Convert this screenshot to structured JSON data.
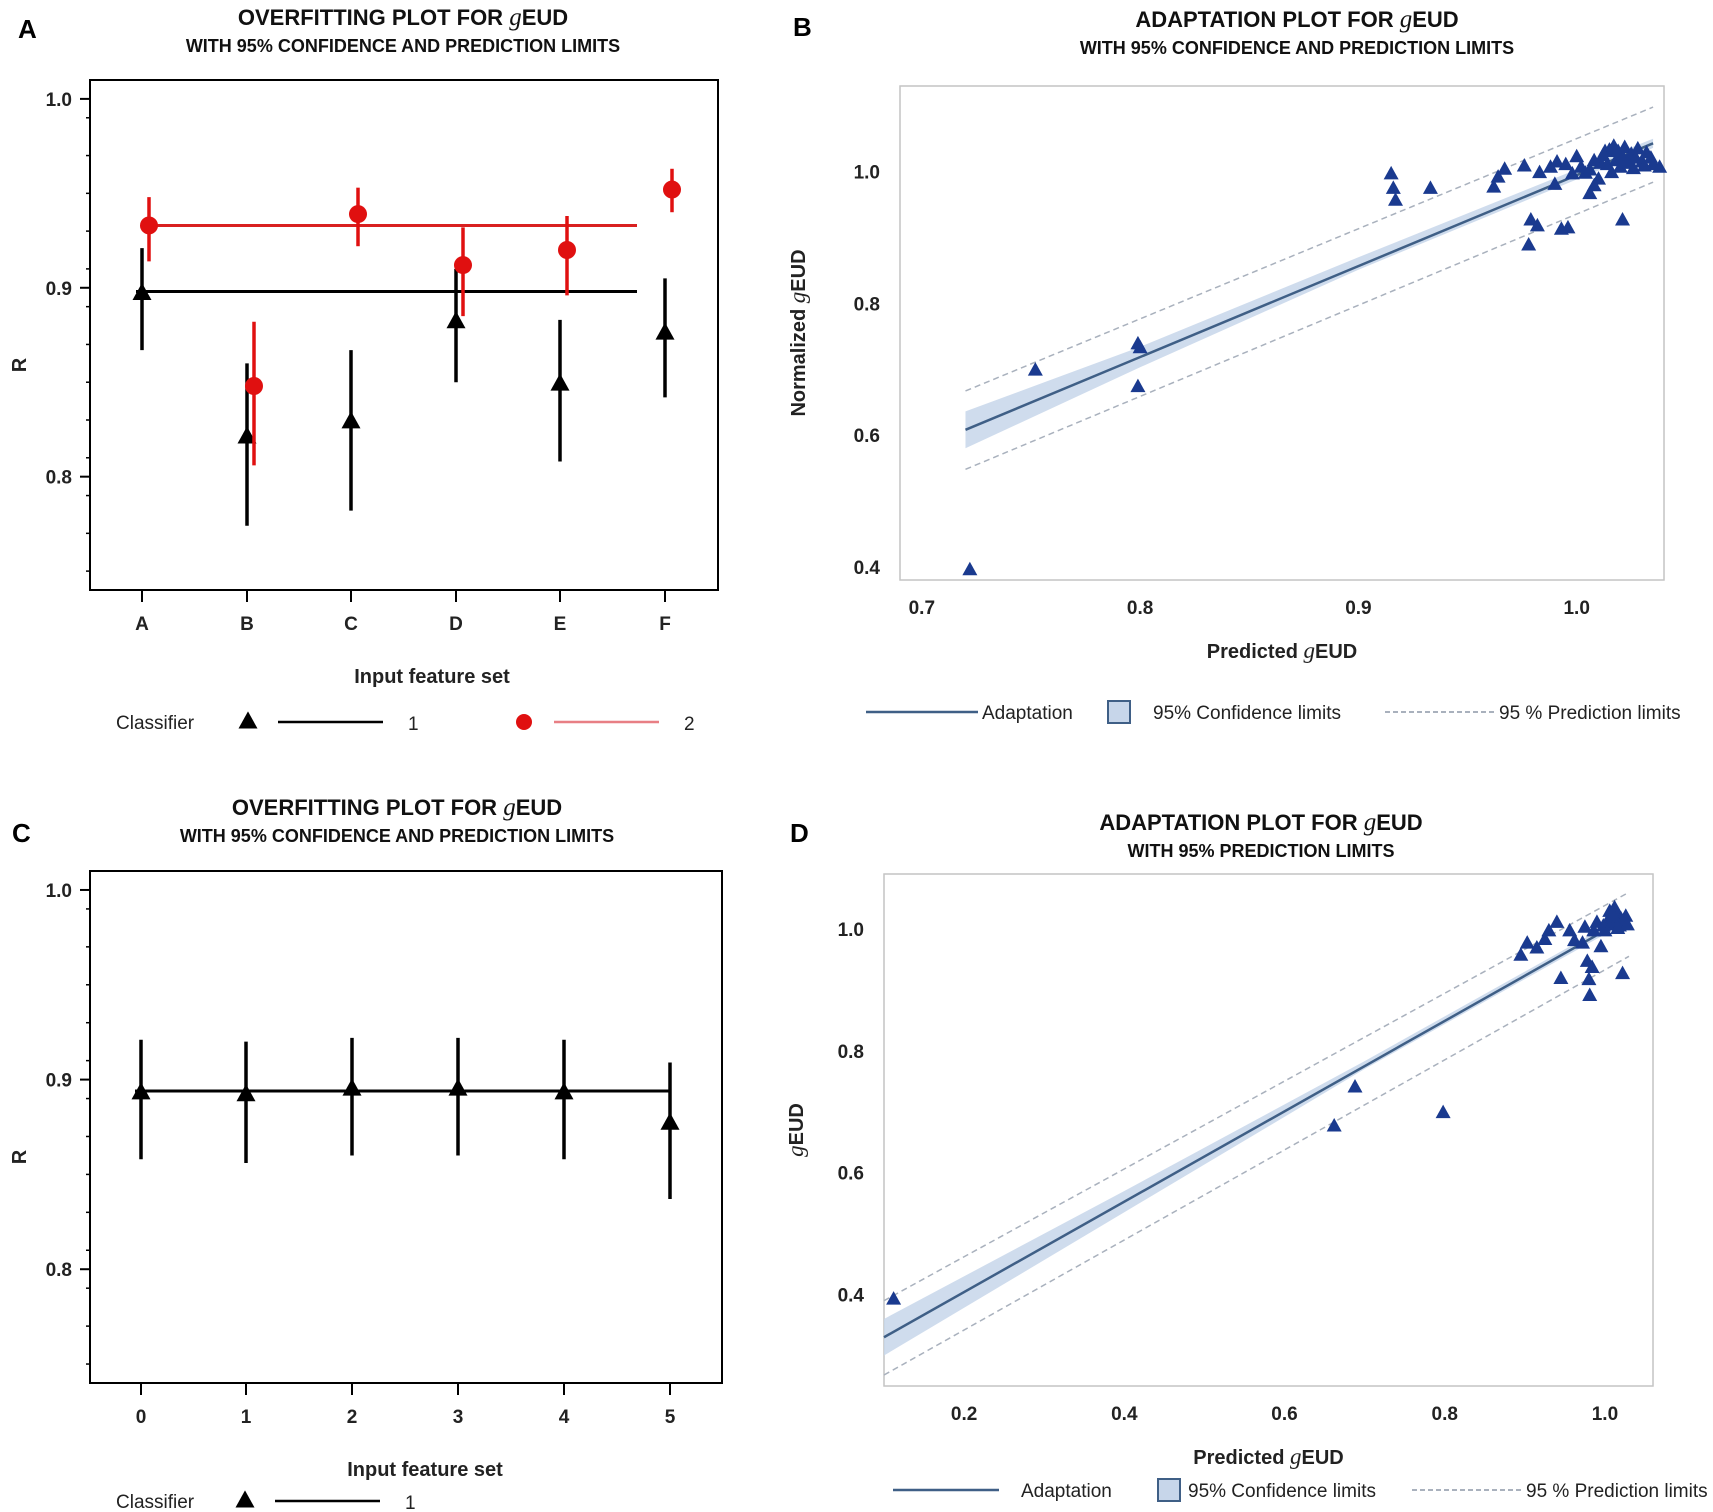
{
  "panels": [
    {
      "id": "A",
      "letter": "A",
      "title": [
        "OVERFITTING PLOT FOR ",
        "g",
        "EUD"
      ],
      "subtitle": "WITH 95% CONFIDENCE AND PREDICTION LIMITS",
      "xlabel": "Input feature set",
      "ylabel": "R",
      "legend": {
        "prefix": "Classifier",
        "items": [
          {
            "label": "1",
            "color": "#000000",
            "marker": "triangle"
          },
          {
            "label": "2",
            "color": "#e01010",
            "marker": "circle",
            "line_color": "#e87f84"
          }
        ]
      }
    },
    {
      "id": "B",
      "letter": "B",
      "title": [
        "ADAPTATION PLOT FOR ",
        "g",
        "EUD"
      ],
      "subtitle": "WITH 95% CONFIDENCE AND PREDICTION LIMITS",
      "xlabel": [
        "Predicted ",
        "g",
        "EUD"
      ],
      "ylabel": [
        "Normalized ",
        "g",
        "EUD"
      ],
      "legend": {
        "adaptation": "Adaptation",
        "confidence": "95% Confidence limits",
        "prediction": "95 % Prediction limits"
      }
    },
    {
      "id": "C",
      "letter": "C",
      "title": [
        "OVERFITTING PLOT FOR ",
        "g",
        "EUD"
      ],
      "subtitle": "WITH 95% CONFIDENCE AND PREDICTION LIMITS",
      "xlabel": "Input feature set",
      "ylabel": "R",
      "legend": {
        "prefix": "Classifier",
        "items": [
          {
            "label": "1",
            "color": "#000000",
            "marker": "triangle"
          }
        ]
      }
    },
    {
      "id": "D",
      "letter": "D",
      "title": [
        "ADAPTATION PLOT FOR ",
        "g",
        "EUD"
      ],
      "subtitle": "WITH 95% PREDICTION LIMITS",
      "xlabel": [
        "Predicted ",
        "g",
        "EUD"
      ],
      "ylabel": [
        "g",
        "EUD"
      ],
      "legend": {
        "adaptation": "Adaptation",
        "confidence": "95% Confidence limits",
        "prediction": "95 % Prediction limits"
      }
    }
  ],
  "colors": {
    "navy": "#1a3a8f",
    "line": "#3f5f86",
    "band": "#c7d6ea",
    "pred": "#a9b1bd",
    "red": "#e01010",
    "redline": "#d92020"
  },
  "chart_data": [
    {
      "panel": "A",
      "type": "scatter",
      "categories": [
        "A",
        "B",
        "C",
        "D",
        "E",
        "F"
      ],
      "ylim": [
        0.74,
        1.01
      ],
      "yticks": [
        "0.8",
        "0.9",
        "1.0"
      ],
      "yticks_values": [
        0.8,
        0.9,
        1.0
      ],
      "series": [
        {
          "name": "1",
          "marker": "triangle",
          "color": "#000000",
          "values": [
            0.897,
            0.821,
            0.829,
            0.882,
            0.849,
            0.876
          ],
          "lower": [
            0.867,
            0.774,
            0.782,
            0.85,
            0.808,
            0.842
          ],
          "upper": [
            0.921,
            0.86,
            0.867,
            0.91,
            0.883,
            0.905
          ],
          "mean": 0.898
        },
        {
          "name": "2",
          "marker": "circle",
          "color": "#e01010",
          "values": [
            0.933,
            0.848,
            0.939,
            0.912,
            0.92,
            0.952
          ],
          "lower": [
            0.914,
            0.806,
            0.922,
            0.885,
            0.896,
            0.94
          ],
          "upper": [
            0.948,
            0.882,
            0.953,
            0.932,
            0.938,
            0.963
          ],
          "mean": 0.933
        }
      ]
    },
    {
      "panel": "B",
      "type": "scatter",
      "xlim": [
        0.69,
        1.04
      ],
      "ylim": [
        0.38,
        1.13
      ],
      "xticks": [
        "0.7",
        "0.8",
        "0.9",
        "1.0"
      ],
      "xticks_values": [
        0.7,
        0.8,
        0.9,
        1.0
      ],
      "yticks": [
        "0.4",
        "0.6",
        "0.8",
        "1.0"
      ],
      "yticks_values": [
        0.4,
        0.6,
        0.8,
        1.0
      ],
      "fit": {
        "x": [
          0.72,
          1.035
        ],
        "y": [
          0.608,
          1.043
        ]
      },
      "confidence": {
        "x": [
          0.72,
          0.8,
          0.9,
          1.035
        ],
        "upper": [
          0.636,
          0.734,
          0.87,
          1.05
        ],
        "lower": [
          0.58,
          0.703,
          0.851,
          1.036
        ]
      },
      "prediction": {
        "x": [
          0.72,
          1.035
        ],
        "upper": [
          0.667,
          1.098
        ],
        "lower": [
          0.548,
          0.984
        ]
      },
      "points": [
        [
          0.722,
          0.395
        ],
        [
          0.752,
          0.698
        ],
        [
          0.799,
          0.738
        ],
        [
          0.8,
          0.732
        ],
        [
          0.799,
          0.673
        ],
        [
          0.915,
          0.996
        ],
        [
          0.916,
          0.974
        ],
        [
          0.917,
          0.956
        ],
        [
          0.933,
          0.974
        ],
        [
          0.962,
          0.976
        ],
        [
          0.964,
          0.991
        ],
        [
          0.967,
          1.003
        ],
        [
          0.976,
          1.008
        ],
        [
          0.978,
          0.888
        ],
        [
          0.979,
          0.926
        ],
        [
          0.982,
          0.917
        ],
        [
          0.983,
          0.998
        ],
        [
          0.988,
          1.006
        ],
        [
          0.99,
          0.98
        ],
        [
          0.991,
          1.014
        ],
        [
          0.993,
          0.912
        ],
        [
          0.996,
          0.914
        ],
        [
          0.998,
          0.996
        ],
        [
          1.0,
          1.022
        ],
        [
          1.002,
          1.006
        ],
        [
          1.004,
          0.997
        ],
        [
          1.006,
          0.966
        ],
        [
          1.008,
          0.978
        ],
        [
          1.01,
          0.988
        ],
        [
          1.011,
          1.012
        ],
        [
          1.012,
          1.024
        ],
        [
          1.014,
          1.01
        ],
        [
          1.015,
          1.032
        ],
        [
          1.016,
          0.998
        ],
        [
          1.018,
          1.016
        ],
        [
          1.019,
          1.03
        ],
        [
          1.02,
          1.006
        ],
        [
          1.021,
          1.022
        ],
        [
          1.022,
          1.036
        ],
        [
          1.024,
          1.012
        ],
        [
          1.025,
          1.026
        ],
        [
          1.026,
          1.004
        ],
        [
          1.027,
          1.02
        ],
        [
          1.028,
          1.034
        ],
        [
          1.03,
          1.014
        ],
        [
          1.031,
          1.008
        ],
        [
          1.032,
          1.028
        ],
        [
          1.034,
          1.02
        ],
        [
          1.035,
          1.01
        ],
        [
          1.038,
          1.006
        ],
        [
          1.008,
          1.016
        ],
        [
          1.013,
          1.03
        ],
        [
          1.017,
          1.038
        ],
        [
          1.023,
          1.016
        ],
        [
          1.021,
          0.926
        ],
        [
          1.006,
          1.002
        ],
        [
          0.995,
          1.01
        ]
      ]
    },
    {
      "panel": "C",
      "type": "scatter",
      "categories": [
        "0",
        "1",
        "2",
        "3",
        "4",
        "5"
      ],
      "ylim": [
        0.74,
        1.01
      ],
      "yticks": [
        "0.8",
        "0.9",
        "1.0"
      ],
      "yticks_values": [
        0.8,
        0.9,
        1.0
      ],
      "series": [
        {
          "name": "1",
          "marker": "triangle",
          "color": "#000000",
          "values": [
            0.893,
            0.892,
            0.895,
            0.895,
            0.893,
            0.877
          ],
          "lower": [
            0.858,
            0.856,
            0.86,
            0.86,
            0.858,
            0.837
          ],
          "upper": [
            0.921,
            0.92,
            0.922,
            0.922,
            0.921,
            0.909
          ],
          "mean": 0.894
        }
      ]
    },
    {
      "panel": "D",
      "type": "scatter",
      "xlim": [
        0.1,
        1.06
      ],
      "ylim": [
        0.25,
        1.09
      ],
      "xticks": [
        "0.2",
        "0.4",
        "0.6",
        "0.8",
        "1.0"
      ],
      "xticks_values": [
        0.2,
        0.4,
        0.6,
        0.8,
        1.0
      ],
      "yticks": [
        "0.4",
        "0.6",
        "0.8",
        "1.0"
      ],
      "yticks_values": [
        0.4,
        0.6,
        0.8,
        1.0
      ],
      "fit": {
        "x": [
          0.1,
          1.02
        ],
        "y": [
          0.33,
          1.012
        ]
      },
      "confidence": {
        "x": [
          0.1,
          0.4,
          0.7,
          1.02
        ],
        "upper": [
          0.36,
          0.57,
          0.783,
          1.018
        ],
        "lower": [
          0.3,
          0.535,
          0.77,
          1.006
        ]
      },
      "prediction": {
        "x": [
          0.1,
          1.03
        ],
        "upper": [
          0.39,
          1.06
        ],
        "lower": [
          0.268,
          0.955
        ]
      },
      "points": [
        [
          0.112,
          0.392
        ],
        [
          0.662,
          0.676
        ],
        [
          0.688,
          0.74
        ],
        [
          0.798,
          0.698
        ],
        [
          0.895,
          0.956
        ],
        [
          0.903,
          0.976
        ],
        [
          0.915,
          0.968
        ],
        [
          0.925,
          0.982
        ],
        [
          0.93,
          0.996
        ],
        [
          0.94,
          1.01
        ],
        [
          0.945,
          0.918
        ],
        [
          0.956,
          0.996
        ],
        [
          0.962,
          0.98
        ],
        [
          0.972,
          0.976
        ],
        [
          0.975,
          1.002
        ],
        [
          0.978,
          0.946
        ],
        [
          0.98,
          0.916
        ],
        [
          0.981,
          0.89
        ],
        [
          0.984,
          0.936
        ],
        [
          0.986,
          0.996
        ],
        [
          0.99,
          1.01
        ],
        [
          0.995,
          0.97
        ],
        [
          0.998,
          1.004
        ],
        [
          1.0,
          0.996
        ],
        [
          1.004,
          1.014
        ],
        [
          1.006,
          1.028
        ],
        [
          1.008,
          1.006
        ],
        [
          1.01,
          1.018
        ],
        [
          1.012,
          1.034
        ],
        [
          1.014,
          1.01
        ],
        [
          1.016,
          1.024
        ],
        [
          1.018,
          1.004
        ],
        [
          1.02,
          1.016
        ],
        [
          1.022,
          0.926
        ],
        [
          1.024,
          1.012
        ],
        [
          1.026,
          1.02
        ],
        [
          1.028,
          1.006
        ],
        [
          1.016,
          1.0
        ],
        [
          1.01,
          1.022
        ]
      ]
    }
  ]
}
